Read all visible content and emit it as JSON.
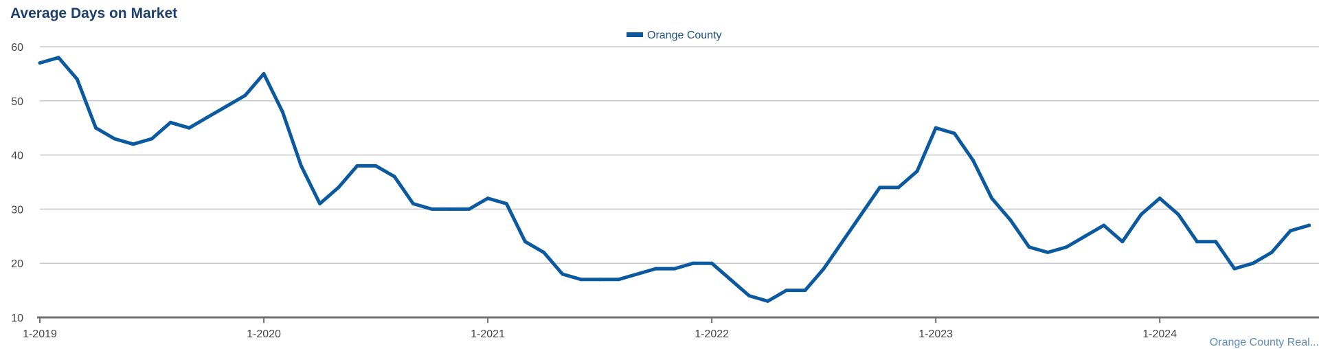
{
  "chart_data": {
    "type": "line",
    "title": "Average Days on Market",
    "xlabel": "",
    "ylabel": "",
    "ylim": [
      10,
      60
    ],
    "yticks": [
      "10",
      "20",
      "30",
      "40",
      "50",
      "60"
    ],
    "xticks": [
      "1-2019",
      "1-2020",
      "1-2021",
      "1-2022",
      "1-2023",
      "1-2024"
    ],
    "grid": true,
    "legend_position": "top-center",
    "color": "#0b5aa0",
    "x_start": "1-2019",
    "series": [
      {
        "name": "Orange County",
        "values": [
          57,
          58,
          54,
          45,
          43,
          42,
          43,
          46,
          45,
          47,
          49,
          51,
          55,
          48,
          38,
          31,
          34,
          38,
          38,
          36,
          31,
          30,
          30,
          30,
          32,
          31,
          24,
          22,
          18,
          17,
          17,
          17,
          18,
          19,
          19,
          20,
          20,
          17,
          14,
          13,
          15,
          15,
          19,
          24,
          29,
          34,
          34,
          37,
          45,
          44,
          39,
          32,
          28,
          23,
          22,
          23,
          25,
          27,
          24,
          29,
          32,
          29,
          24,
          24,
          19,
          20,
          22,
          26,
          27
        ]
      }
    ]
  },
  "footer": {
    "credit": "Orange County Real..."
  }
}
